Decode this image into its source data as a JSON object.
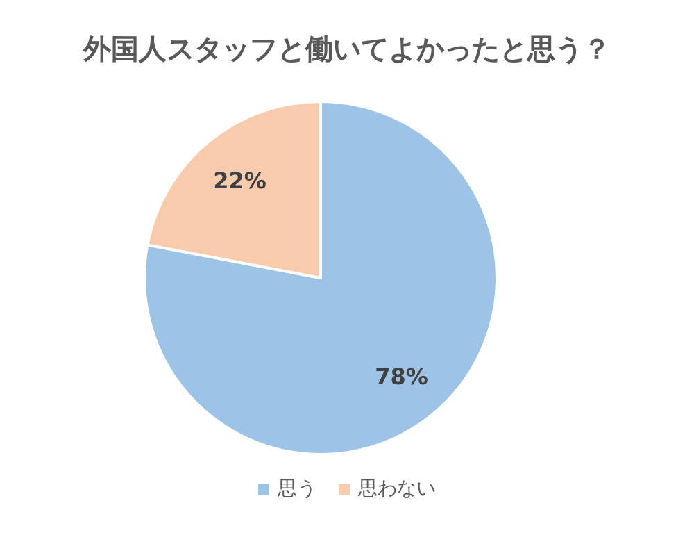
{
  "chart_data": {
    "type": "pie",
    "title": "外国人スタッフと働いてよかったと思う？",
    "categories": [
      "思う",
      "思わない"
    ],
    "values": [
      78,
      22
    ],
    "colors": [
      "#9dc3e6",
      "#f8cbad"
    ],
    "value_labels": [
      "78%",
      "22%"
    ],
    "legend": "bottom"
  }
}
